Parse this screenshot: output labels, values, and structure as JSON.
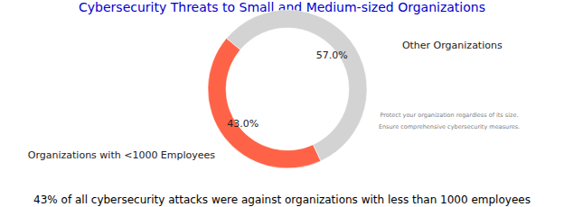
{
  "chart_data": {
    "type": "donut",
    "title": "Cybersecurity Threats to Small and Medium-sized Organizations",
    "categories": [
      "Organizations with <1000 Employees",
      "Other Organizations"
    ],
    "values": [
      43,
      57
    ],
    "value_labels": [
      "43.0%",
      "57.0%"
    ],
    "colors": [
      "#ff6347",
      "#d3d3d3"
    ],
    "data_labels": true,
    "annotations": [
      "Protect your organization regardless of its size.",
      "Ensure comprehensive cybersecurity measures."
    ],
    "caption": "43% of all cybersecurity attacks were against organizations with less than 1000 employees"
  }
}
